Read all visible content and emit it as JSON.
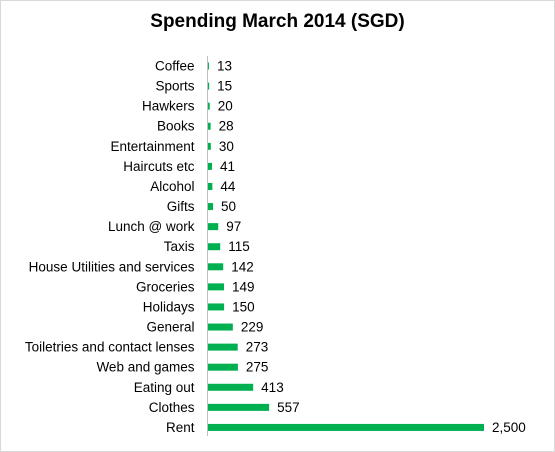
{
  "chart_data": {
    "type": "bar",
    "orientation": "horizontal",
    "title": "Spending March 2014 (SGD)",
    "xlabel": "",
    "ylabel": "",
    "grid": false,
    "legend": "none",
    "bar_color": "#00b050",
    "axis_color": "#bfbfbf",
    "xlim": [
      0,
      2500
    ],
    "categories": [
      "Coffee",
      "Sports",
      "Hawkers",
      "Books",
      "Entertainment",
      "Haircuts etc",
      "Alcohol",
      "Gifts",
      "Lunch @ work",
      "Taxis",
      "House Utilities and services",
      "Groceries",
      "Holidays",
      "General",
      "Toiletries and contact lenses",
      "Web and games",
      "Eating out",
      "Clothes",
      "Rent"
    ],
    "values": [
      13,
      15,
      20,
      28,
      30,
      41,
      44,
      50,
      97,
      115,
      142,
      149,
      150,
      229,
      273,
      275,
      413,
      557,
      2500
    ],
    "data_labels": [
      "13",
      "15",
      "20",
      "28",
      "30",
      "41",
      "44",
      "50",
      "97",
      "115",
      "142",
      "149",
      "150",
      "229",
      "273",
      "275",
      "413",
      "557",
      "2,500"
    ]
  }
}
